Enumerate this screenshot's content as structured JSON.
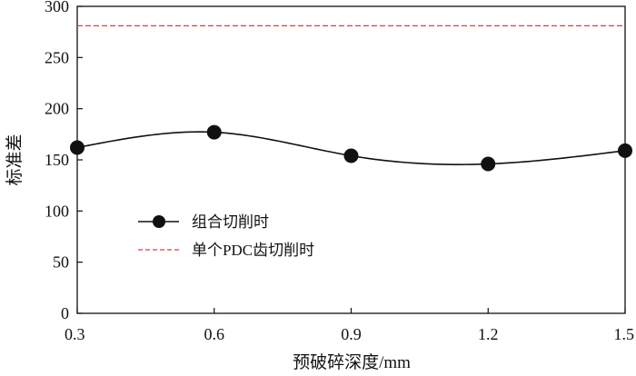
{
  "chart_data": {
    "type": "line",
    "title": "",
    "xlabel": "预破碎深度/mm",
    "ylabel": "标准差",
    "x": [
      0.3,
      0.6,
      0.9,
      1.2,
      1.5
    ],
    "x_tick_labels": [
      "0.3",
      "0.6",
      "0.9",
      "1.2",
      "1.5"
    ],
    "xlim": [
      0.3,
      1.5
    ],
    "ylim": [
      0,
      300
    ],
    "y_ticks": [
      0,
      50,
      100,
      150,
      200,
      250,
      300
    ],
    "y_tick_labels": [
      "0",
      "50",
      "100",
      "150",
      "200",
      "250",
      "300"
    ],
    "grid": false,
    "legend_position": "center-left",
    "series": [
      {
        "name": "组合切削时",
        "style": "smooth line with filled circle markers",
        "color": "#111111",
        "values": [
          162,
          177,
          154,
          146,
          159
        ]
      },
      {
        "name": "单个PDC齿切削时",
        "style": "dashed horizontal line",
        "color": "#e8383d",
        "values": [
          281,
          281,
          281,
          281,
          281
        ]
      }
    ]
  }
}
